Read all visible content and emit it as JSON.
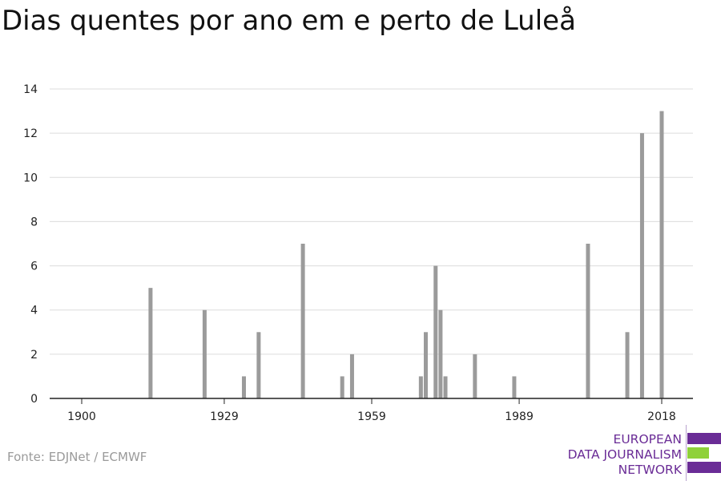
{
  "title": "Dias quentes por ano em e perto de Luleå",
  "source": "Fonte: EDJNet / ECMWF",
  "logo": {
    "lines": [
      "EUROPEAN",
      "DATA JOURNALISM",
      "NETWORK"
    ],
    "colors": {
      "purple": "#6a2c96",
      "green": "#8fd13a"
    }
  },
  "chart_data": {
    "type": "bar",
    "title": "Dias quentes por ano em e perto de Luleå",
    "xlabel": "",
    "ylabel": "",
    "xlim": [
      1900,
      2018
    ],
    "ylim": [
      0,
      14
    ],
    "xticks": [
      1900,
      1929,
      1959,
      1989,
      2018
    ],
    "yticks": [
      0,
      2,
      4,
      6,
      8,
      10,
      12,
      14
    ],
    "grid": "horizontal",
    "bar_color": "#9b9b9b",
    "categories": [
      1914,
      1925,
      1933,
      1936,
      1945,
      1953,
      1955,
      1969,
      1970,
      1972,
      1973,
      1974,
      1980,
      1988,
      2003,
      2011,
      2014,
      2018
    ],
    "values": [
      5,
      4,
      1,
      3,
      7,
      1,
      2,
      1,
      3,
      6,
      4,
      1,
      2,
      1,
      7,
      3,
      12,
      13
    ]
  }
}
